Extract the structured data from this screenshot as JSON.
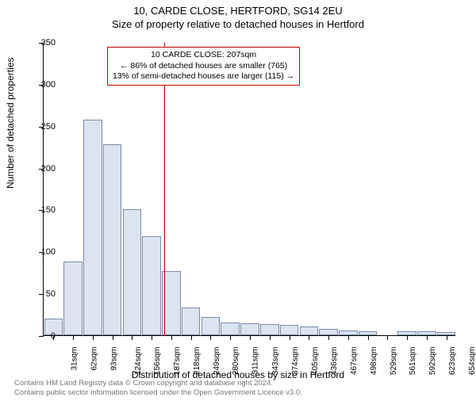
{
  "title_main": "10, CARDE CLOSE, HERTFORD, SG14 2EU",
  "title_sub": "Size of property relative to detached houses in Hertford",
  "ylabel": "Number of detached properties",
  "xlabel": "Distribution of detached houses by size in Hertford",
  "chart": {
    "type": "histogram",
    "background_color": "#ffffff",
    "bar_fill": "#dbe4f0",
    "bar_border": "#7a8ca8",
    "ylim": [
      0,
      350
    ],
    "ytick_step": 50,
    "yticks": [
      0,
      50,
      100,
      150,
      200,
      250,
      300,
      350
    ],
    "x_categories": [
      "31sqm",
      "62sqm",
      "93sqm",
      "124sqm",
      "156sqm",
      "187sqm",
      "218sqm",
      "249sqm",
      "280sqm",
      "311sqm",
      "343sqm",
      "374sqm",
      "405sqm",
      "436sqm",
      "467sqm",
      "498sqm",
      "529sqm",
      "561sqm",
      "592sqm",
      "623sqm",
      "654sqm"
    ],
    "values": [
      20,
      88,
      257,
      228,
      150,
      118,
      77,
      33,
      22,
      15,
      14,
      13,
      12,
      10,
      8,
      6,
      5,
      0,
      5,
      5,
      4
    ],
    "bar_width_ratio": 0.95,
    "marker": {
      "color": "#c00000",
      "x_position_sqm": 207,
      "x_index_between": [
        5,
        6
      ]
    }
  },
  "callout": {
    "border_color": "#c00000",
    "line1": "10 CARDE CLOSE: 207sqm",
    "line2": "← 86% of detached houses are smaller (765)",
    "line3": "13% of semi-detached houses are larger (115) →"
  },
  "footer": {
    "line1": "Contains HM Land Registry data © Crown copyright and database right 2024.",
    "line2": "Contains public sector information licensed under the Open Government Licence v3.0."
  }
}
